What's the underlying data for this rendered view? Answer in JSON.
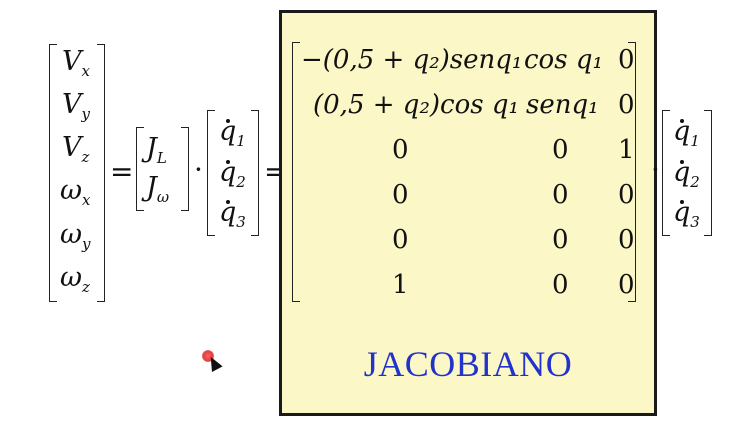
{
  "velocity_vector": {
    "rows": [
      {
        "base": "V",
        "sub": "x"
      },
      {
        "base": "V",
        "sub": "y"
      },
      {
        "base": "V",
        "sub": "z"
      },
      {
        "base": "ω",
        "sub": "x"
      },
      {
        "base": "ω",
        "sub": "y"
      },
      {
        "base": "ω",
        "sub": "z"
      }
    ]
  },
  "block_jacobian": {
    "rows": [
      {
        "base": "J",
        "sub": "L"
      },
      {
        "base": "J",
        "sub": "ω"
      }
    ]
  },
  "qdot_vector": {
    "rows": [
      {
        "base": "q",
        "sub": "1"
      },
      {
        "base": "q",
        "sub": "2"
      },
      {
        "base": "q",
        "sub": "3"
      }
    ]
  },
  "operators": {
    "equals": "=",
    "dot": "·"
  },
  "jacobian": {
    "label": "JACOBIANO",
    "rows": [
      [
        "−(0,5 + q₂)senq₁",
        "cos q₁",
        "0"
      ],
      [
        "(0,5 + q₂)cos q₁",
        "senq₁",
        "0"
      ],
      [
        "0",
        "0",
        "1"
      ],
      [
        "0",
        "0",
        "0"
      ],
      [
        "0",
        "0",
        "0"
      ],
      [
        "1",
        "0",
        "0"
      ]
    ]
  },
  "colors": {
    "box_fill": "#fbf7c6",
    "label": "#2233cc",
    "cursor": "#e04040"
  }
}
